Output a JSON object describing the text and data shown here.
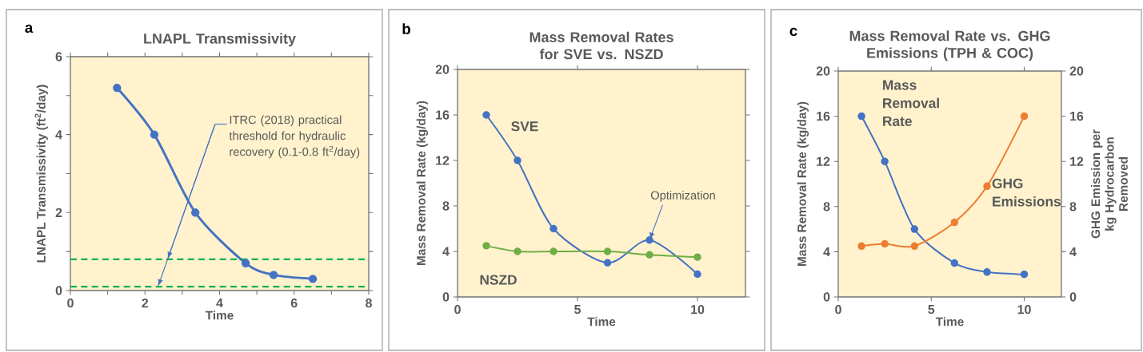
{
  "chart_data": [
    {
      "type": "line",
      "title": "LNAPL Transmissivity",
      "xlabel": "Time",
      "ylabel": "LNAPL Transmissivity (ft$^{2}$/day)",
      "annotations": [
        "a",
        {
          "text": "ITRC (2018) practical threshold for hydraulic recovery (0.1-0.8 ft$^{2}$/day)",
          "x": 2.35,
          "y": 0.1
        }
      ],
      "x": [
        1.25,
        2.25,
        3.35,
        4.7,
        5.45,
        6.5
      ],
      "series": [
        {
          "color": "#4472c4",
          "values": [
            5.2,
            4.0,
            2.0,
            0.7,
            0.4,
            0.3
          ]
        }
      ],
      "xlim": [
        0,
        8
      ],
      "ylim": [
        0,
        6
      ],
      "xticks": [
        0,
        {
          "value": 1,
          "label": null
        },
        2,
        {
          "value": 3,
          "label": null
        },
        4,
        {
          "value": 5,
          "label": null
        },
        6,
        {
          "value": 7,
          "label": null
        },
        8
      ],
      "yticks": [
        0,
        {
          "value": 1,
          "label": null
        },
        2,
        {
          "value": 3,
          "label": null
        },
        4,
        {
          "value": 5,
          "label": null
        },
        6
      ],
      "ref_lines": [
        {
          "axis": "y",
          "value": 0.1,
          "color": "#00b050",
          "line_style": "dashed"
        },
        {
          "axis": "y",
          "value": 0.8,
          "color": "#00b050",
          "line_style": "dashed"
        }
      ],
      "marker": "circle"
    },
    {
      "type": "line",
      "title": "Mass Removal Rates for SVE vs. NSZD",
      "xlabel": "Time",
      "ylabel": "Mass Removal Rate (kg/day)",
      "annotations": [
        "b",
        {
          "text": "Optimization",
          "x": 8,
          "y": 5
        }
      ],
      "x": [
        1.2,
        2.5,
        4.0,
        6.25,
        8.0,
        10
      ],
      "series": [
        {
          "name": "SVE",
          "color": "#4472c4",
          "values": [
            16,
            12,
            6,
            3,
            5,
            2
          ]
        },
        {
          "name": "NSZD",
          "color": "#70ad47",
          "values": [
            4.5,
            4.0,
            4.0,
            4.0,
            3.7,
            3.5
          ]
        }
      ],
      "xlim": [
        0,
        12
      ],
      "ylim": [
        0,
        20
      ],
      "xticks": [
        0,
        5,
        10
      ],
      "yticks": [
        0,
        4,
        8,
        12,
        16,
        20
      ],
      "marker": "circle"
    },
    {
      "type": "line",
      "title": "Mass Removal Rate vs. GHG Emissions (TPH & COC)",
      "xlabel": "Time",
      "ylabel": "Mass Removal Rate (kg/day)",
      "y2label": "GHG Emission per kg Hydrocarbon Removed",
      "annotations": [
        "c"
      ],
      "x": [
        1.25,
        2.5,
        4.1,
        6.25,
        8.0,
        10
      ],
      "series": [
        {
          "name": "Mass Removal Rate",
          "color": "#4472c4",
          "values": [
            16,
            12,
            6,
            3,
            2.2,
            2
          ]
        },
        {
          "name": "GHG Emissions",
          "color": "#ed7d31",
          "axis": "y2",
          "values": [
            4.5,
            4.7,
            4.5,
            6.6,
            9.8,
            16
          ]
        }
      ],
      "xlim": [
        0,
        12
      ],
      "ylim": [
        0,
        20
      ],
      "y2lim": [
        0,
        20
      ],
      "xticks": [
        0,
        5,
        10
      ],
      "yticks": [
        0,
        4,
        8,
        12,
        16,
        20
      ],
      "y2ticks": [
        0,
        4,
        8,
        12,
        16,
        20
      ],
      "marker": "circle"
    }
  ]
}
